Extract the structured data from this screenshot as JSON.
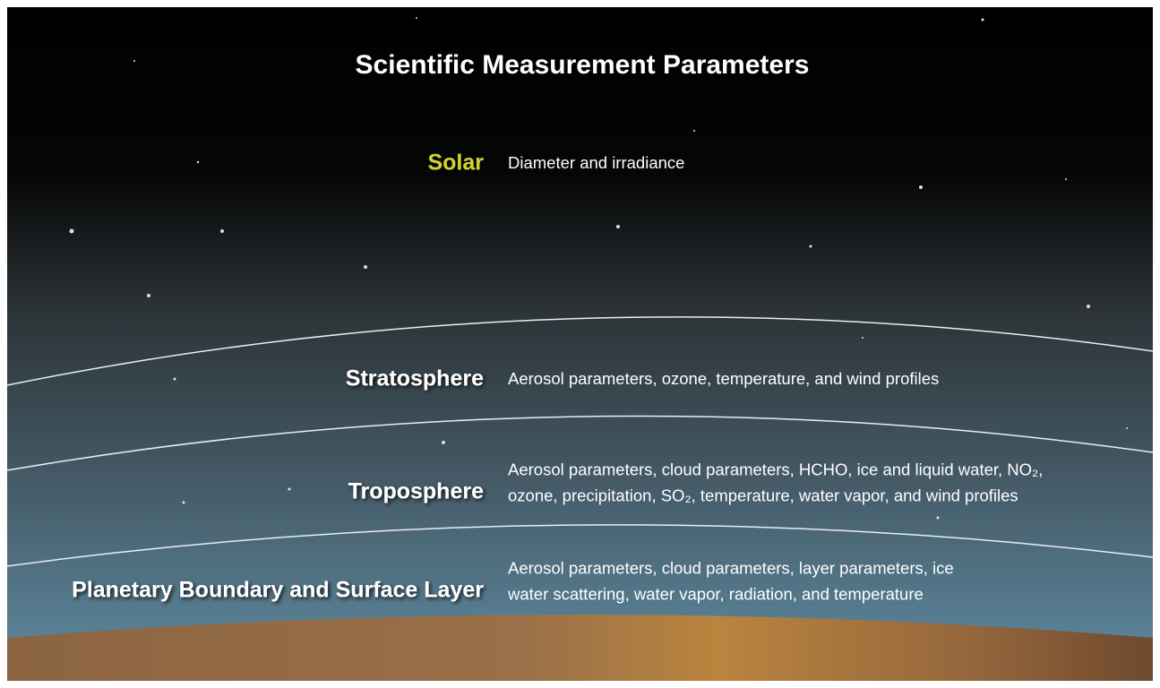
{
  "title": "Scientific Measurement Parameters",
  "layers": [
    {
      "name": "Solar",
      "description": [
        "Diameter and irradiance"
      ]
    },
    {
      "name": "Stratosphere",
      "description": [
        "Aerosol parameters, ozone, temperature, and wind profiles"
      ]
    },
    {
      "name": "Troposphere",
      "description": [
        "Aerosol parameters, cloud parameters, HCHO, ice and liquid water, NO₂,",
        "ozone, precipitation, SO₂, temperature, water vapor, and wind profiles"
      ]
    },
    {
      "name": "Planetary Boundary and Surface Layer",
      "description": [
        "Aerosol parameters, cloud parameters, layer parameters, ice",
        "water scattering, water vapor, radiation, and temperature"
      ]
    }
  ]
}
